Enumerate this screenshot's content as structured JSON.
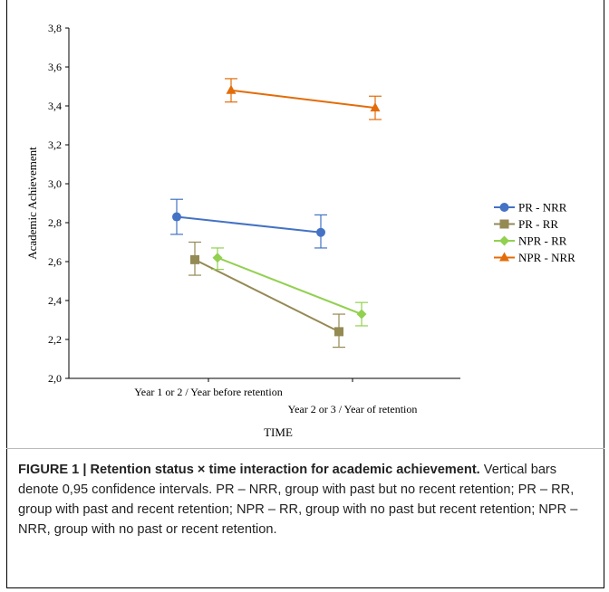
{
  "figure": {
    "caption_lead": "FIGURE 1 | Retention status × time interaction for academic achievement.",
    "caption_body": " Vertical bars denote 0,95 confidence intervals. PR – NRR, group with past but no recent retention; PR – RR, group with past and recent retention; NPR – RR, group with no past but recent retention; NPR – NRR, group with no past or recent retention."
  },
  "chart_data": {
    "type": "line",
    "title": "",
    "xlabel": "TIME",
    "ylabel": "Academic Achievement",
    "categories": [
      "Year 1 or 2 / Year before retention",
      "Year 2 or 3 / Year of retention"
    ],
    "ylim": [
      2.0,
      3.8
    ],
    "yticks": [
      "2,0",
      "2,2",
      "2,4",
      "2,6",
      "2,8",
      "3,0",
      "3,2",
      "3,4",
      "3,6",
      "3,8"
    ],
    "grid": false,
    "legend_position": "right",
    "series": [
      {
        "name": "PR - NRR",
        "color": "#4472c4",
        "marker": "circle",
        "values": [
          2.83,
          2.75
        ],
        "ci_low": [
          2.74,
          2.67
        ],
        "ci_high": [
          2.92,
          2.84
        ]
      },
      {
        "name": "PR - RR",
        "color": "#948a54",
        "marker": "square",
        "values": [
          2.61,
          2.24
        ],
        "ci_low": [
          2.53,
          2.16
        ],
        "ci_high": [
          2.7,
          2.33
        ]
      },
      {
        "name": "NPR - RR",
        "color": "#92d050",
        "marker": "diamond",
        "values": [
          2.62,
          2.33
        ],
        "ci_low": [
          2.56,
          2.27
        ],
        "ci_high": [
          2.67,
          2.39
        ]
      },
      {
        "name": "NPR - NRR",
        "color": "#e36c09",
        "marker": "triangle",
        "values": [
          3.48,
          3.39
        ],
        "ci_low": [
          3.42,
          3.33
        ],
        "ci_high": [
          3.54,
          3.45
        ]
      }
    ]
  }
}
